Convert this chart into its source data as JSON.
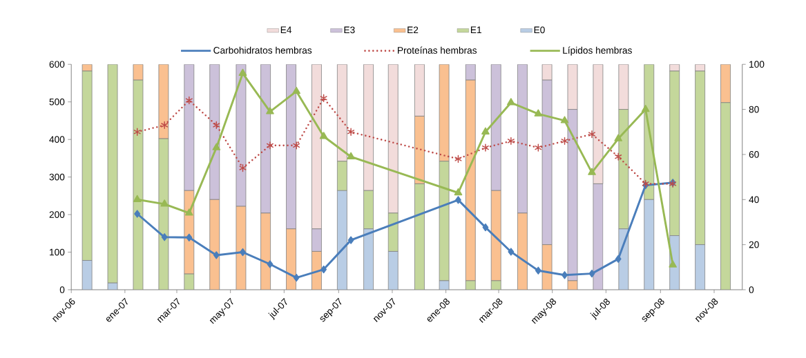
{
  "chart_data": {
    "type": "bar",
    "stacked": true,
    "legend": "top",
    "x": [
      "2006-11-19",
      "2006-12-18",
      "2007-01-16",
      "2007-02-14",
      "2007-03-15",
      "2007-04-13",
      "2007-05-13",
      "2007-06-10",
      "2007-07-09",
      "2007-08-07",
      "2007-09-05",
      "2007-10-05",
      "2007-11-02",
      "2007-12-02",
      "2007-12-30",
      "2008-01-29",
      "2008-02-27",
      "2008-03-28",
      "2008-04-25",
      "2008-05-24",
      "2008-06-22",
      "2008-07-21",
      "2008-08-19",
      "2008-09-17",
      "2008-10-16",
      "2008-11-14"
    ],
    "xlim": [
      "2006-11-01",
      "2008-12-03"
    ],
    "xticks": [
      {
        "value": "2006-11-01",
        "label": "nov-06"
      },
      {
        "value": "2007-01-01",
        "label": "ene-07"
      },
      {
        "value": "2007-03-01",
        "label": "mar-07"
      },
      {
        "value": "2007-05-01",
        "label": "may-07"
      },
      {
        "value": "2007-07-01",
        "label": "jul-07"
      },
      {
        "value": "2007-09-01",
        "label": "sep-07"
      },
      {
        "value": "2007-11-01",
        "label": "nov-07"
      },
      {
        "value": "2008-01-01",
        "label": "ene-08"
      },
      {
        "value": "2008-03-01",
        "label": "mar-08"
      },
      {
        "value": "2008-05-01",
        "label": "may-08"
      },
      {
        "value": "2008-07-01",
        "label": "jul-08"
      },
      {
        "value": "2008-09-01",
        "label": "sep-08"
      },
      {
        "value": "2008-11-01",
        "label": "nov-08"
      }
    ],
    "ylim": [
      0,
      600
    ],
    "yticks": [
      0,
      100,
      200,
      300,
      400,
      500,
      600
    ],
    "y2lim": [
      0,
      100
    ],
    "y2ticks": [
      0,
      20,
      40,
      60,
      80,
      100
    ],
    "series": [
      {
        "name": "E0",
        "axis": "y2",
        "color": "#b9cde5",
        "values": [
          13,
          3,
          0,
          0,
          0,
          0,
          0,
          0,
          0,
          0,
          44,
          27,
          17,
          0,
          4,
          0,
          0,
          0,
          0,
          0,
          0,
          27,
          40,
          24,
          20,
          0
        ]
      },
      {
        "name": "E1",
        "axis": "y2",
        "color": "#c4d79b",
        "values": [
          84,
          97,
          93,
          67,
          7,
          0,
          0,
          0,
          0,
          0,
          13,
          17,
          17,
          47,
          53,
          4,
          4,
          0,
          0,
          0,
          0,
          53,
          60,
          73,
          77,
          83
        ]
      },
      {
        "name": "E2",
        "axis": "y2",
        "color": "#fac090",
        "values": [
          3,
          0,
          7,
          33,
          37,
          40,
          37,
          34,
          27,
          17,
          0,
          0,
          0,
          30,
          43,
          89,
          40,
          34,
          20,
          4,
          0,
          0,
          0,
          0,
          0,
          17
        ]
      },
      {
        "name": "E3",
        "axis": "y2",
        "color": "#ccc1da",
        "values": [
          0,
          0,
          0,
          0,
          56,
          60,
          63,
          66,
          73,
          10,
          0,
          0,
          0,
          0,
          0,
          7,
          56,
          66,
          73,
          76,
          47,
          0,
          0,
          0,
          0,
          0
        ]
      },
      {
        "name": "E4",
        "axis": "y2",
        "color": "#f2dcdb",
        "values": [
          0,
          0,
          0,
          0,
          0,
          0,
          0,
          0,
          0,
          73,
          43,
          56,
          66,
          23,
          0,
          0,
          0,
          0,
          7,
          20,
          53,
          20,
          0,
          3,
          3,
          0
        ]
      },
      {
        "name": "Carbohidratos hembras",
        "type": "line",
        "axis": "y",
        "color": "#4a7ebb",
        "marker": "diamond",
        "line_style": "solid",
        "x": [
          "2007-01-15",
          "2007-02-15",
          "2007-03-15",
          "2007-04-15",
          "2007-05-15",
          "2007-06-15",
          "2007-07-15",
          "2007-08-15",
          "2007-09-15",
          "2008-01-15",
          "2008-02-15",
          "2008-03-15",
          "2008-04-15",
          "2008-05-15",
          "2008-06-15",
          "2008-07-15",
          "2008-08-15",
          "2008-09-15"
        ],
        "values": [
          202,
          140,
          139,
          92,
          100,
          68,
          32,
          54,
          132,
          239,
          166,
          101,
          51,
          39,
          43,
          82,
          278,
          285
        ]
      },
      {
        "name": "Proteínas hembras",
        "type": "line",
        "axis": "y2",
        "color": "#be4b48",
        "marker": "cross",
        "line_style": "dotted",
        "x": [
          "2007-01-15",
          "2007-02-15",
          "2007-03-15",
          "2007-04-15",
          "2007-05-15",
          "2007-06-15",
          "2007-07-15",
          "2007-08-15",
          "2007-09-15",
          "2008-01-15",
          "2008-02-15",
          "2008-03-15",
          "2008-04-15",
          "2008-05-15",
          "2008-06-15",
          "2008-07-15",
          "2008-08-15",
          "2008-09-15"
        ],
        "values": [
          70,
          73,
          84,
          73,
          54,
          64,
          64,
          85,
          70,
          58,
          63,
          66,
          63,
          66,
          69,
          59,
          47,
          47
        ]
      },
      {
        "name": "Lípidos hembras",
        "type": "line",
        "axis": "y2",
        "color": "#98b954",
        "marker": "triangle",
        "line_style": "solid",
        "x": [
          "2007-01-15",
          "2007-02-15",
          "2007-03-15",
          "2007-04-15",
          "2007-05-15",
          "2007-06-15",
          "2007-07-15",
          "2007-08-15",
          "2007-09-15",
          "2008-01-15",
          "2008-02-15",
          "2008-03-15",
          "2008-04-15",
          "2008-05-15",
          "2008-06-15",
          "2008-07-15",
          "2008-08-15",
          "2008-09-15"
        ],
        "values": [
          40,
          38,
          34,
          63,
          96,
          79,
          88,
          68,
          59,
          43,
          70,
          83,
          78,
          75,
          52,
          67,
          80,
          11
        ]
      }
    ]
  }
}
